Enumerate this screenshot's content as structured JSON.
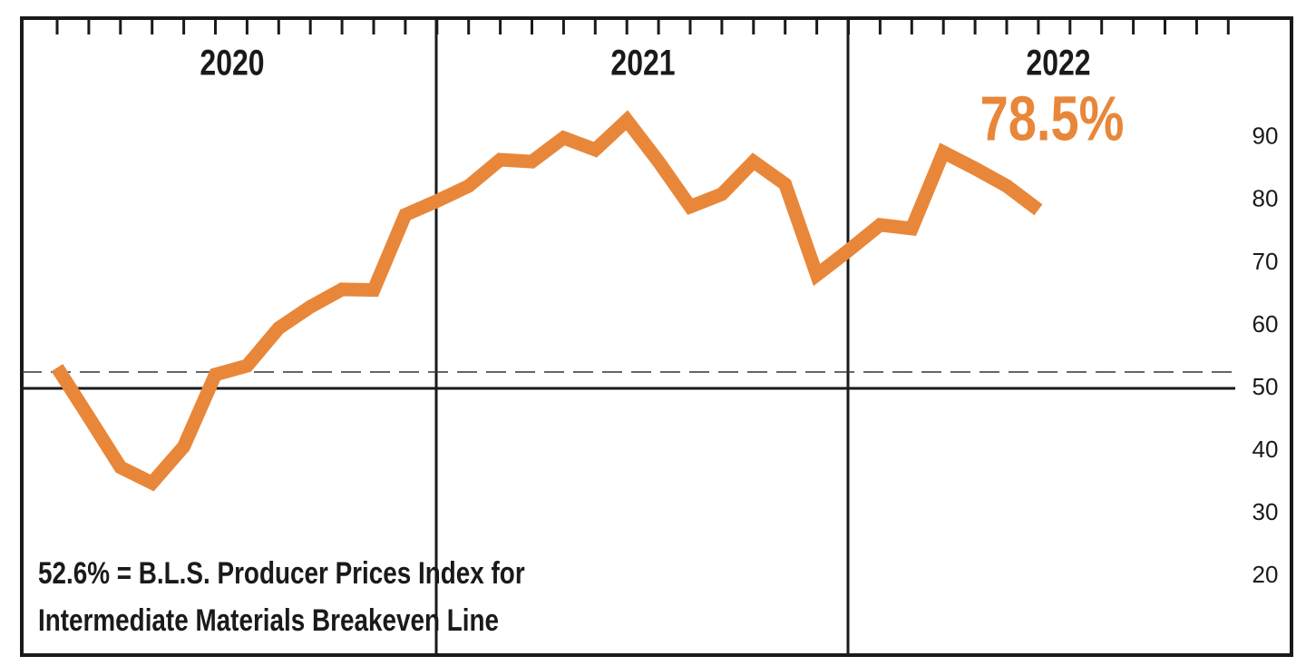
{
  "chart_data": {
    "type": "line",
    "categories": [
      null,
      null,
      null,
      null,
      null,
      null,
      null,
      null,
      null,
      null,
      null,
      null,
      null,
      null,
      null,
      null,
      null,
      null,
      null,
      null,
      null,
      null,
      null,
      null,
      null,
      null,
      null,
      null,
      null,
      null,
      null,
      null
    ],
    "series": [
      {
        "color": "#e8873a",
        "values": [
          53.3,
          45.4,
          37.4,
          34.9,
          40.7,
          52.2,
          53.6,
          59.6,
          63.0,
          65.8,
          65.7,
          77.7,
          79.9,
          82.3,
          86.5,
          86.2,
          90.0,
          88.1,
          92.8,
          86.2,
          79.0,
          81.0,
          86.2,
          82.6,
          68.1,
          72.0,
          76.1,
          75.5,
          87.7,
          85.1,
          82.3,
          78.5
        ]
      }
    ],
    "years": [
      "2020",
      "2021",
      "2022"
    ],
    "annotation": "78.5%",
    "breakeven": 52.6,
    "note": [
      "52.6% = B.L.S. Producer Prices Index for",
      "Intermediate Materials Breakeven Line"
    ],
    "ylim": [
      7.4,
      109.1
    ],
    "yticks": [
      20,
      30,
      40,
      50,
      60,
      70,
      80,
      90
    ],
    "grid": false
  }
}
